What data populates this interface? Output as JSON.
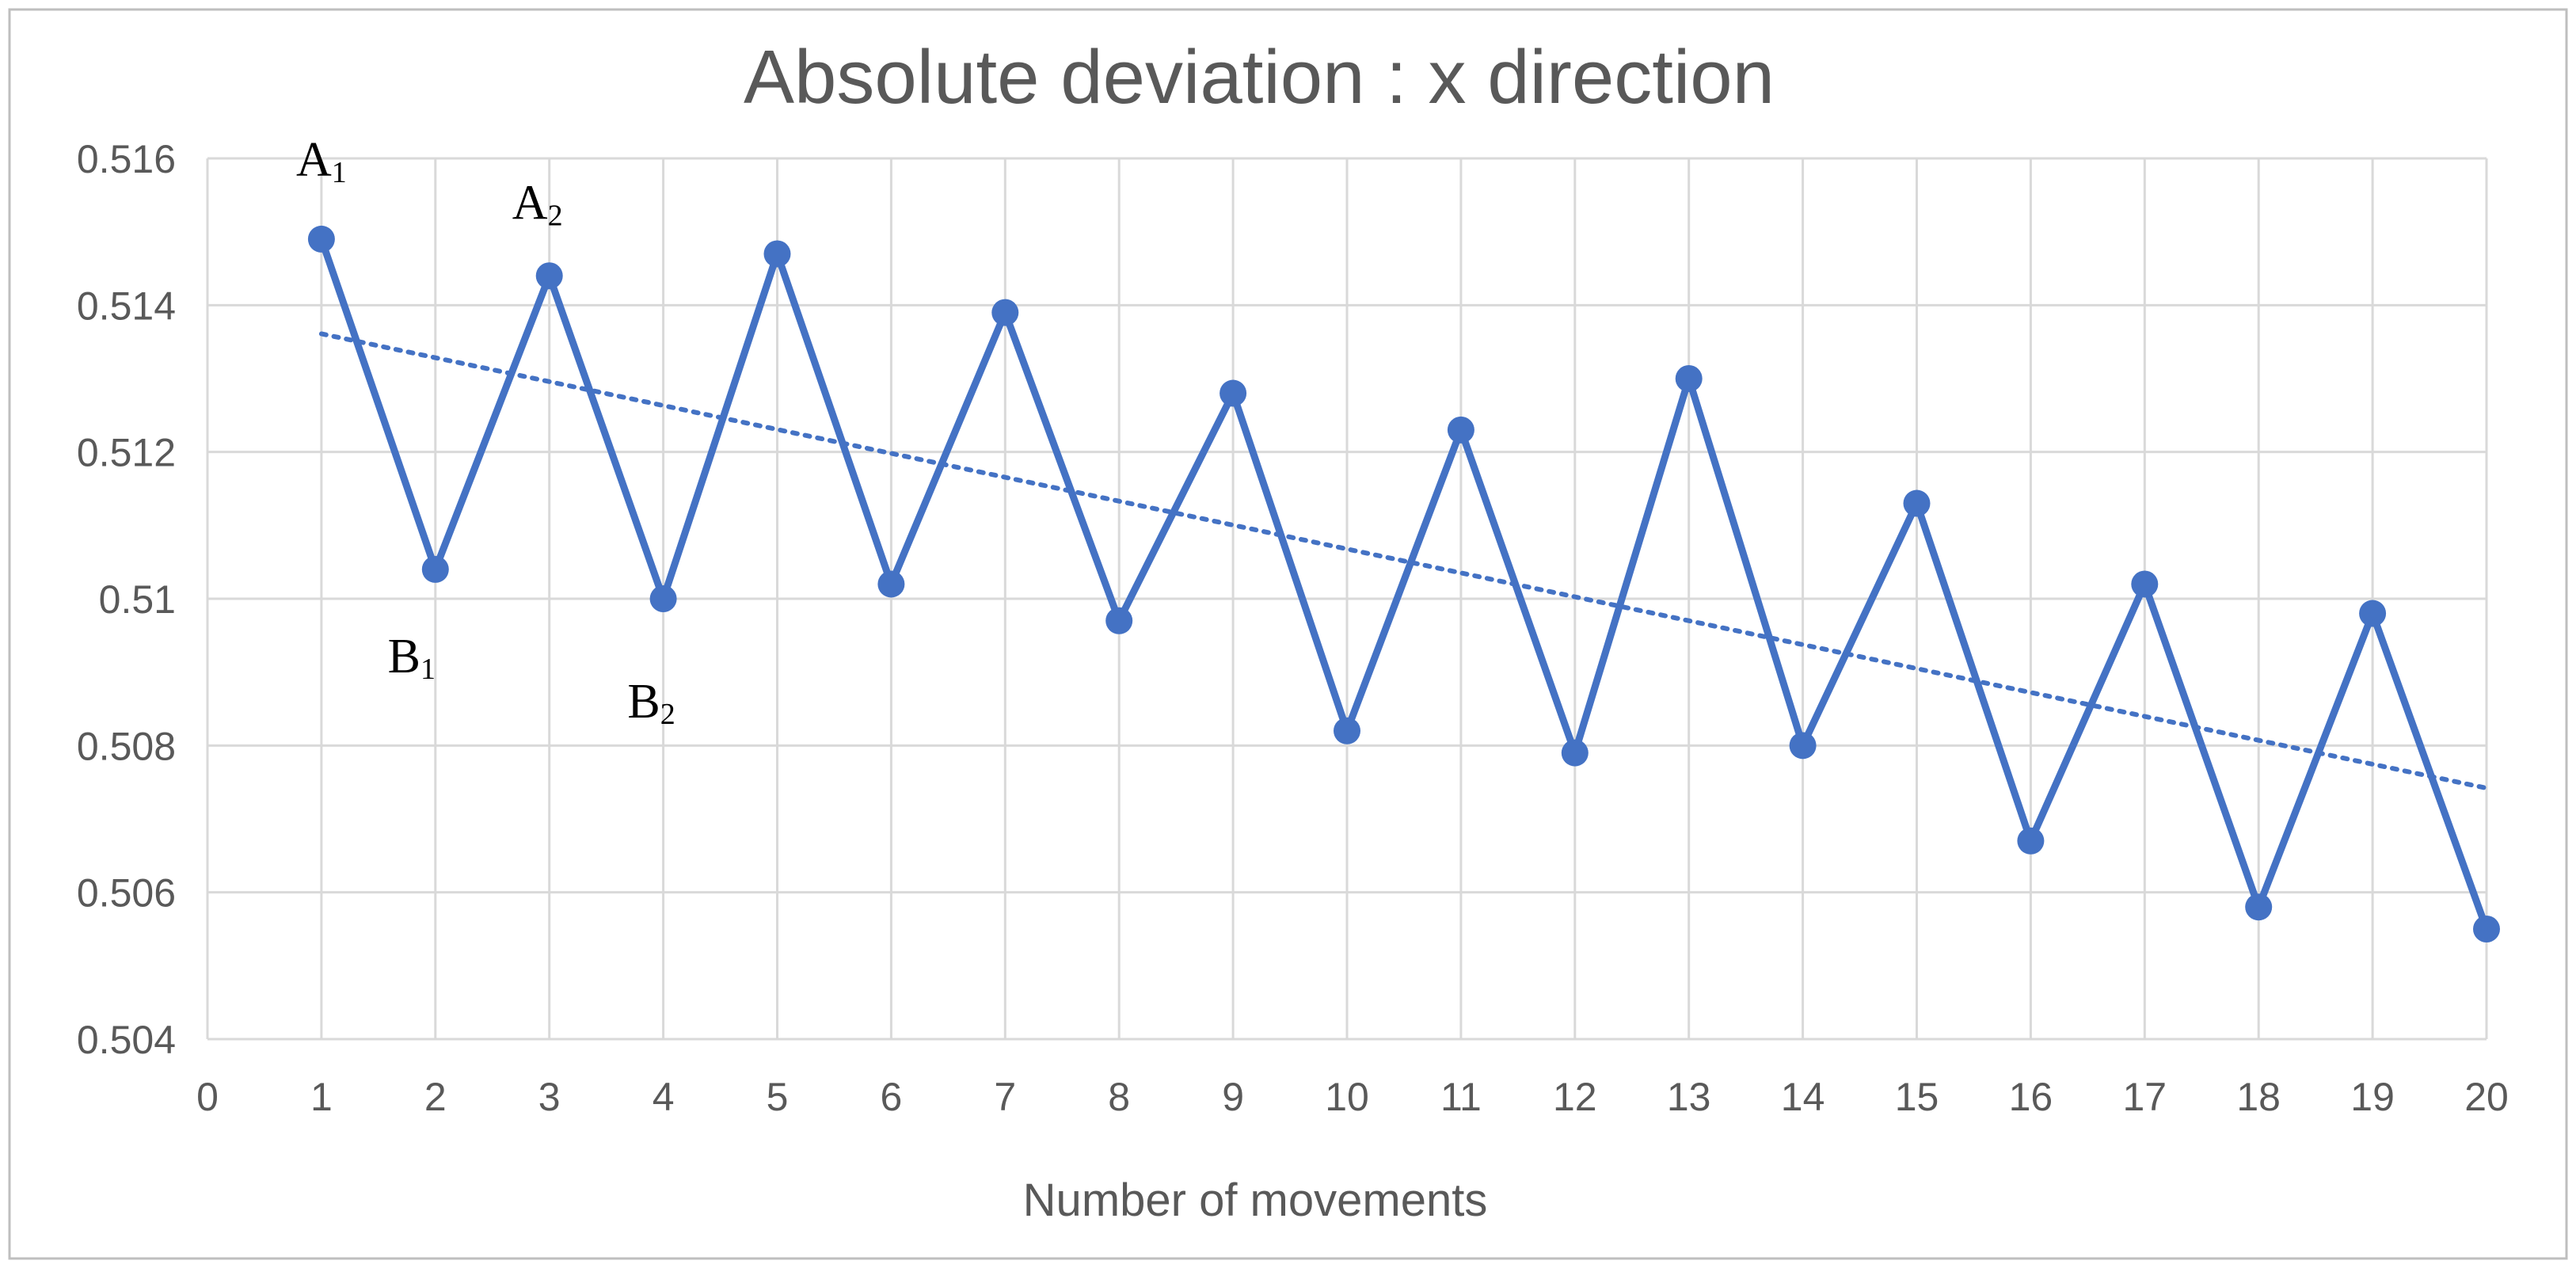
{
  "colors": {
    "series": "#4472c4",
    "trendline": "#4472c4",
    "grid": "#d9d9d9",
    "text": "#595959",
    "background": "#ffffff"
  },
  "chart_data": {
    "type": "line",
    "title": "Absolute deviation : x direction",
    "xlabel": "Number of movements",
    "ylabel": "",
    "xlim": [
      0,
      20
    ],
    "ylim": [
      0.504,
      0.516
    ],
    "x_ticks": [
      0,
      1,
      2,
      3,
      4,
      5,
      6,
      7,
      8,
      9,
      10,
      11,
      12,
      13,
      14,
      15,
      16,
      17,
      18,
      19,
      20
    ],
    "y_ticks": [
      {
        "value": 0.504,
        "label": "0.504"
      },
      {
        "value": 0.506,
        "label": "0.506"
      },
      {
        "value": 0.508,
        "label": "0.508"
      },
      {
        "value": 0.51,
        "label": "0.51"
      },
      {
        "value": 0.512,
        "label": "0.512"
      },
      {
        "value": 0.514,
        "label": "0.514"
      },
      {
        "value": 0.516,
        "label": "0.516"
      }
    ],
    "grid": true,
    "legend": "none",
    "series": [
      {
        "x": [
          1,
          2,
          3,
          4,
          5,
          6,
          7,
          8,
          9,
          10,
          11,
          12,
          13,
          14,
          15,
          16,
          17,
          18,
          19,
          20
        ],
        "values": [
          0.5149,
          0.5104,
          0.5144,
          0.51,
          0.5147,
          0.5102,
          0.5139,
          0.5097,
          0.5128,
          0.5082,
          0.5123,
          0.5079,
          0.513,
          0.508,
          0.5113,
          0.5067,
          0.5102,
          0.5058,
          0.5098,
          0.5055
        ],
        "markers": true
      }
    ],
    "trendline": {
      "type": "linear",
      "style": "dotted",
      "from": {
        "x": 1,
        "y": 0.51361
      },
      "to": {
        "x": 20,
        "y": 0.50742
      }
    },
    "annotations": [
      {
        "base": "A",
        "sub": "1",
        "x": 1,
        "y": 0.5149
      },
      {
        "base": "B",
        "sub": "1",
        "x": 2,
        "y": 0.5104
      },
      {
        "base": "A",
        "sub": "2",
        "x": 3,
        "y": 0.5144
      },
      {
        "base": "B",
        "sub": "2",
        "x": 4,
        "y": 0.51
      }
    ]
  }
}
